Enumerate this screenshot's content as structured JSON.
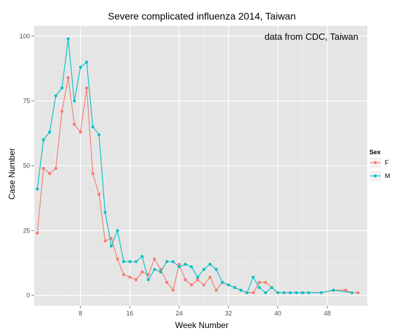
{
  "chart_data": {
    "type": "line",
    "title": "Severe complicated influenza 2014, Taiwan",
    "xlabel": "Week Number",
    "ylabel": "Case Number",
    "annotation": "data from CDC, Taiwan",
    "xlim": [
      0.5,
      54.5
    ],
    "ylim": [
      -4,
      104
    ],
    "x_ticks": [
      8,
      16,
      24,
      32,
      40,
      48
    ],
    "y_ticks": [
      0,
      25,
      50,
      75,
      100
    ],
    "grid": true,
    "legend": {
      "title": "Sex",
      "position": "right",
      "entries": [
        {
          "label": "F",
          "color": "#F8766D"
        },
        {
          "label": "M",
          "color": "#00BFC4"
        }
      ]
    },
    "series": [
      {
        "name": "F",
        "color": "#F8766D",
        "x": [
          1,
          2,
          3,
          4,
          5,
          6,
          7,
          8,
          9,
          10,
          11,
          12,
          13,
          14,
          15,
          16,
          17,
          18,
          19,
          20,
          21,
          22,
          23,
          24,
          25,
          26,
          27,
          28,
          29,
          30,
          31,
          32,
          33,
          34,
          35,
          36,
          37,
          38,
          39,
          40,
          41,
          42,
          43,
          44,
          45,
          47,
          49,
          51,
          52,
          53
        ],
        "y": [
          24,
          49,
          47,
          49,
          71,
          84,
          66,
          63,
          80,
          47,
          39,
          21,
          22,
          14,
          8,
          7,
          6,
          9,
          8,
          14,
          10,
          5,
          2,
          12,
          6,
          4,
          6,
          4,
          7,
          2,
          5,
          4,
          3,
          2,
          1,
          1,
          5,
          5,
          3,
          1,
          1,
          1,
          1,
          1,
          1,
          1,
          2,
          2,
          1,
          1
        ]
      },
      {
        "name": "M",
        "color": "#00BFC4",
        "x": [
          1,
          2,
          3,
          4,
          5,
          6,
          7,
          8,
          9,
          10,
          11,
          12,
          13,
          14,
          15,
          16,
          17,
          18,
          19,
          20,
          21,
          22,
          23,
          24,
          25,
          26,
          27,
          28,
          29,
          30,
          31,
          32,
          33,
          34,
          35,
          36,
          37,
          38,
          39,
          40,
          41,
          42,
          43,
          44,
          45,
          47,
          49,
          52
        ],
        "y": [
          41,
          60,
          63,
          77,
          80,
          99,
          75,
          88,
          90,
          65,
          62,
          32,
          19,
          25,
          13,
          13,
          13,
          15,
          6,
          10,
          9,
          13,
          13,
          11,
          12,
          11,
          7,
          10,
          12,
          10,
          5,
          4,
          3,
          2,
          1,
          7,
          3,
          1,
          3,
          1,
          1,
          1,
          1,
          1,
          1,
          1,
          2,
          1
        ]
      }
    ]
  }
}
